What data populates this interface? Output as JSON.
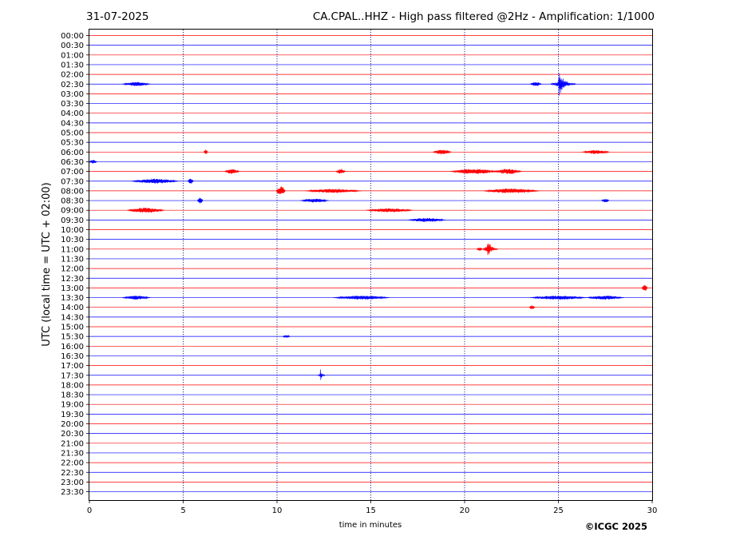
{
  "header": {
    "date": "31-07-2025",
    "title": "CA.CPAL..HHZ - High pass filtered @2Hz - Amplification: 1/1000"
  },
  "credit": "©ICGC 2025",
  "colors": {
    "trace_a": "#ff0000",
    "trace_b": "#0000ff",
    "frame": "#000000",
    "grid": "#000080"
  },
  "chart_data": {
    "type": "line",
    "title": "CA.CPAL..HHZ - High pass filtered @2Hz - Amplification: 1/1000",
    "xlabel": "time in minutes",
    "ylabel": "UTC (local time = UTC + 02:00)",
    "xlim": [
      0,
      30
    ],
    "x_ticks": [
      0,
      5,
      10,
      15,
      20,
      25,
      30
    ],
    "vertical_grid_minutes": [
      5,
      10,
      15,
      20,
      25
    ],
    "grid": "vertical dotted lines every 5 minutes",
    "row_colors": "alternating red / blue per 30-minute row",
    "rows": [
      "00:00",
      "00:30",
      "01:00",
      "01:30",
      "02:00",
      "02:30",
      "03:00",
      "03:30",
      "04:00",
      "04:30",
      "05:00",
      "05:30",
      "06:00",
      "06:30",
      "07:00",
      "07:30",
      "08:00",
      "08:30",
      "09:00",
      "09:30",
      "10:00",
      "10:30",
      "11:00",
      "11:30",
      "12:00",
      "12:30",
      "13:00",
      "13:30",
      "14:00",
      "14:30",
      "15:00",
      "15:30",
      "16:00",
      "16:30",
      "17:00",
      "17:30",
      "18:00",
      "18:30",
      "19:00",
      "19:30",
      "20:00",
      "20:30",
      "21:00",
      "21:30",
      "22:00",
      "22:30",
      "23:00",
      "23:30"
    ],
    "events": [
      {
        "row": 5,
        "minute": 25.0,
        "amplitude": 1.0,
        "duration_min": 1.3
      },
      {
        "row": 22,
        "minute": 21.2,
        "amplitude": 0.9,
        "duration_min": 0.8
      },
      {
        "row": 35,
        "minute": 12.3,
        "amplitude": 0.55,
        "duration_min": 0.4
      },
      {
        "row": 5,
        "minute": 2.5,
        "amplitude": 0.15,
        "duration_min": 1.5
      },
      {
        "row": 5,
        "minute": 23.8,
        "amplitude": 0.18,
        "duration_min": 0.6
      },
      {
        "row": 12,
        "minute": 6.2,
        "amplitude": 0.2,
        "duration_min": 0.2
      },
      {
        "row": 12,
        "minute": 18.8,
        "amplitude": 0.18,
        "duration_min": 1.0
      },
      {
        "row": 12,
        "minute": 27.0,
        "amplitude": 0.15,
        "duration_min": 1.5
      },
      {
        "row": 13,
        "minute": 0.2,
        "amplitude": 0.15,
        "duration_min": 0.4
      },
      {
        "row": 14,
        "minute": 7.6,
        "amplitude": 0.18,
        "duration_min": 0.8
      },
      {
        "row": 14,
        "minute": 13.4,
        "amplitude": 0.2,
        "duration_min": 0.5
      },
      {
        "row": 14,
        "minute": 20.5,
        "amplitude": 0.2,
        "duration_min": 2.5
      },
      {
        "row": 14,
        "minute": 22.3,
        "amplitude": 0.2,
        "duration_min": 1.5
      },
      {
        "row": 15,
        "minute": 3.5,
        "amplitude": 0.18,
        "duration_min": 2.5
      },
      {
        "row": 15,
        "minute": 5.4,
        "amplitude": 0.2,
        "duration_min": 0.3
      },
      {
        "row": 16,
        "minute": 10.2,
        "amplitude": 0.35,
        "duration_min": 0.5
      },
      {
        "row": 16,
        "minute": 13.0,
        "amplitude": 0.15,
        "duration_min": 3.0
      },
      {
        "row": 16,
        "minute": 22.5,
        "amplitude": 0.18,
        "duration_min": 3.0
      },
      {
        "row": 17,
        "minute": 5.9,
        "amplitude": 0.25,
        "duration_min": 0.3
      },
      {
        "row": 17,
        "minute": 12.0,
        "amplitude": 0.15,
        "duration_min": 1.5
      },
      {
        "row": 17,
        "minute": 27.5,
        "amplitude": 0.15,
        "duration_min": 0.4
      },
      {
        "row": 18,
        "minute": 3.0,
        "amplitude": 0.2,
        "duration_min": 2.0
      },
      {
        "row": 18,
        "minute": 16.0,
        "amplitude": 0.15,
        "duration_min": 2.5
      },
      {
        "row": 19,
        "minute": 18.0,
        "amplitude": 0.15,
        "duration_min": 2.0
      },
      {
        "row": 22,
        "minute": 20.8,
        "amplitude": 0.15,
        "duration_min": 0.3
      },
      {
        "row": 26,
        "minute": 29.6,
        "amplitude": 0.25,
        "duration_min": 0.3
      },
      {
        "row": 27,
        "minute": 2.5,
        "amplitude": 0.15,
        "duration_min": 1.5
      },
      {
        "row": 27,
        "minute": 14.5,
        "amplitude": 0.15,
        "duration_min": 3.0
      },
      {
        "row": 27,
        "minute": 25.0,
        "amplitude": 0.15,
        "duration_min": 3.0
      },
      {
        "row": 27,
        "minute": 27.5,
        "amplitude": 0.15,
        "duration_min": 2.0
      },
      {
        "row": 28,
        "minute": 23.6,
        "amplitude": 0.15,
        "duration_min": 0.3
      },
      {
        "row": 31,
        "minute": 10.5,
        "amplitude": 0.1,
        "duration_min": 0.4
      }
    ]
  }
}
